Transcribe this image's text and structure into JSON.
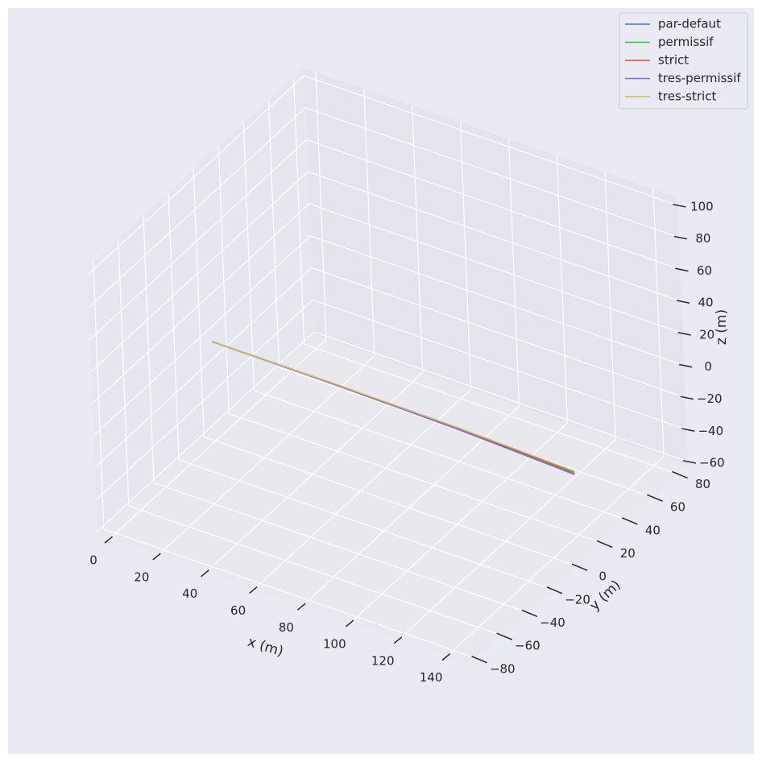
{
  "chart_data": {
    "type": "line",
    "projection": "3d",
    "style": "seaborn-darkgrid",
    "xlabel": "x (m)",
    "ylabel": "y (m)",
    "zlabel": "z (m)",
    "xlim": [
      -5,
      150
    ],
    "ylim": [
      -85,
      88
    ],
    "zlim": [
      -62,
      105
    ],
    "xticks": [
      0,
      20,
      40,
      60,
      80,
      100,
      120,
      140
    ],
    "yticks": [
      -80,
      -60,
      -40,
      -20,
      0,
      20,
      40,
      60,
      80
    ],
    "zticks": [
      -60,
      -40,
      -20,
      0,
      20,
      40,
      60,
      80,
      100
    ],
    "grid": true,
    "legend_position": "top-right",
    "series": [
      {
        "name": "par-defaut",
        "color": "#4c72b0",
        "points": [
          [
            0,
            0,
            0
          ],
          [
            50,
            2,
            -2
          ],
          [
            100,
            4,
            -5
          ],
          [
            148,
            4,
            -8
          ]
        ]
      },
      {
        "name": "permissif",
        "color": "#55a868",
        "points": [
          [
            0,
            0,
            0
          ],
          [
            50,
            2,
            -2
          ],
          [
            100,
            4,
            -5
          ],
          [
            148,
            4,
            -8
          ]
        ]
      },
      {
        "name": "strict",
        "color": "#c44e52",
        "points": [
          [
            0,
            0,
            0
          ],
          [
            50,
            2,
            -2
          ],
          [
            100,
            4,
            -5
          ],
          [
            148,
            4,
            -7
          ]
        ]
      },
      {
        "name": "tres-permissif",
        "color": "#8172b3",
        "points": [
          [
            0,
            0,
            0
          ],
          [
            50,
            2,
            -2.3
          ],
          [
            100,
            4,
            -5.5
          ],
          [
            148,
            4,
            -8.5
          ]
        ]
      },
      {
        "name": "tres-strict",
        "color": "#ccb974",
        "points": [
          [
            0,
            0,
            0
          ],
          [
            50,
            2,
            -1.8
          ],
          [
            100,
            4,
            -4.5
          ],
          [
            148,
            4,
            -6.5
          ]
        ]
      }
    ]
  }
}
